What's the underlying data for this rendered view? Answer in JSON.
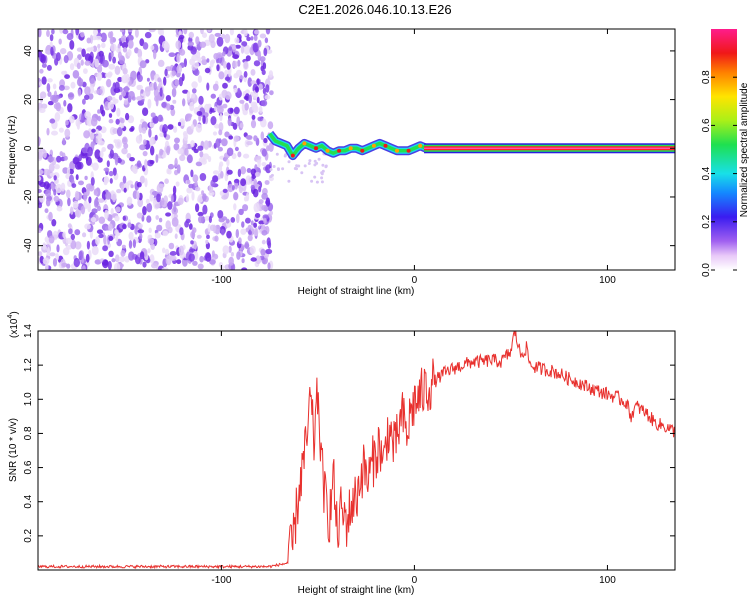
{
  "title": "C2E1.2026.046.10.13.E26",
  "chart_data": [
    {
      "type": "heatmap",
      "xlabel": "Height of straight line (km)",
      "ylabel": "Frequency (Hz)",
      "xlim": [
        -195,
        135
      ],
      "ylim": [
        -50,
        49
      ],
      "xticks": [
        -100,
        0,
        100
      ],
      "xtick_labels": [
        "-100",
        "0",
        "100"
      ],
      "yticks": [
        -40,
        -20,
        0,
        20,
        40
      ],
      "ytick_labels": [
        "-40",
        "-20",
        "0",
        "20",
        "40"
      ],
      "noise_region_x": [
        -195,
        -74
      ],
      "signal_trace": {
        "x": [
          -75,
          -72,
          -69,
          -66,
          -63,
          -60,
          -57,
          -54,
          -51,
          -48,
          -45,
          -42,
          -39,
          -36,
          -33,
          -30,
          -27,
          -24,
          -21,
          -18,
          -15,
          -12,
          -9,
          -6,
          -3,
          0,
          3,
          6,
          10,
          135
        ],
        "y": [
          6,
          3,
          2,
          1,
          -3,
          0,
          2,
          1,
          0,
          1,
          -1,
          -2,
          -1,
          -1,
          0,
          0,
          -1,
          0,
          1,
          2,
          1,
          0,
          -1,
          -1,
          -1,
          0,
          1,
          0,
          0,
          0
        ]
      },
      "colorbar": {
        "label": "Normalized spectral amplitude",
        "range": [
          0.0,
          1.0
        ],
        "ticks": [
          0.0,
          0.2,
          0.4,
          0.6,
          0.8
        ],
        "tick_labels": [
          "0.0",
          "0.2",
          "0.4",
          "0.6",
          "0.8"
        ]
      }
    },
    {
      "type": "line",
      "xlabel": "Height of straight line (km)",
      "ylabel": "SNR (10 * v/v)",
      "y_scale_label": "(x10",
      "y_scale_exp": "4",
      "y_scale_close": ")",
      "xlim": [
        -195,
        135
      ],
      "ylim": [
        0.0,
        1.4
      ],
      "xticks": [
        -100,
        0,
        100
      ],
      "xtick_labels": [
        "-100",
        "0",
        "100"
      ],
      "yticks": [
        0.2,
        0.4,
        0.6,
        0.8,
        1.0,
        1.2,
        1.4
      ],
      "ytick_labels": [
        "0.2",
        "0.4",
        "0.6",
        "0.8",
        "1.0",
        "1.2",
        "1.4"
      ],
      "line_color": "#e8312e",
      "series": [
        {
          "name": "SNR",
          "x": [
            -195,
            -150,
            -100,
            -75,
            -66,
            -63,
            -60,
            -58,
            -56,
            -54,
            -52,
            -50,
            -48,
            -46,
            -44,
            -42,
            -40,
            -38,
            -35,
            -32,
            -30,
            -28,
            -26,
            -24,
            -22,
            -20,
            -18,
            -16,
            -14,
            -12,
            -10,
            -8,
            -6,
            -4,
            -2,
            0,
            2,
            5,
            10,
            15,
            20,
            25,
            30,
            35,
            40,
            45,
            50,
            52,
            55,
            58,
            60,
            65,
            70,
            75,
            80,
            85,
            90,
            95,
            100,
            105,
            110,
            112,
            115,
            120,
            125,
            130,
            135
          ],
          "y": [
            0.02,
            0.02,
            0.02,
            0.02,
            0.04,
            0.15,
            0.45,
            0.6,
            0.72,
            1.0,
            0.75,
            1.05,
            0.6,
            0.4,
            0.3,
            0.55,
            0.2,
            0.35,
            0.28,
            0.4,
            0.42,
            0.55,
            0.6,
            0.52,
            0.62,
            0.68,
            0.74,
            0.6,
            0.82,
            0.78,
            0.7,
            0.84,
            0.9,
            0.78,
            0.92,
            0.98,
            1.0,
            1.05,
            1.1,
            1.15,
            1.18,
            1.2,
            1.22,
            1.22,
            1.23,
            1.22,
            1.28,
            1.4,
            1.26,
            1.3,
            1.2,
            1.18,
            1.17,
            1.15,
            1.12,
            1.1,
            1.07,
            1.05,
            1.03,
            1.01,
            0.98,
            0.9,
            0.96,
            0.92,
            0.86,
            0.84,
            0.81
          ]
        }
      ]
    }
  ]
}
